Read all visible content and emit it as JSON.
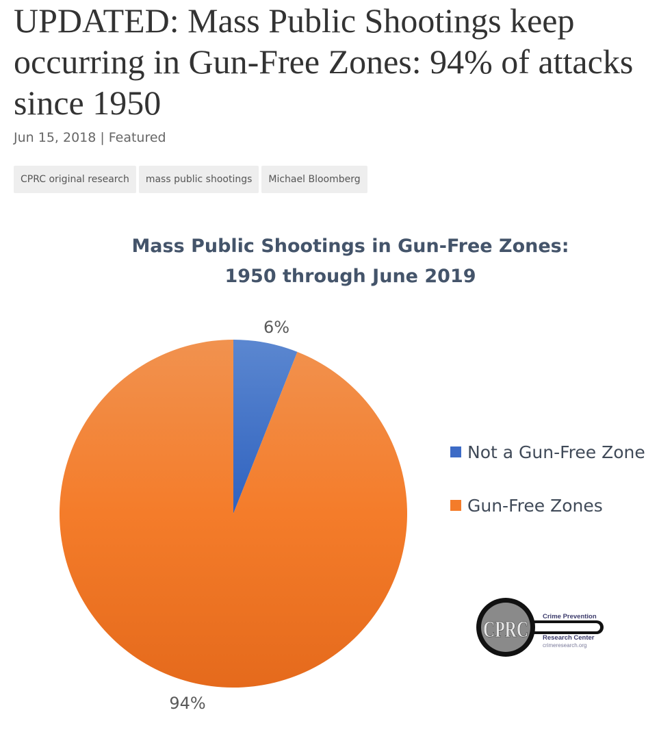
{
  "article": {
    "headline": "UPDATED: Mass Public Shootings keep occurring in Gun-Free Zones: 94% of attacks since 1950",
    "date": "Jun 15, 2018",
    "separator": "|",
    "category": "Featured",
    "tags": [
      "CPRC original research",
      "mass public shootings",
      "Michael Bloomberg"
    ]
  },
  "chart_data": {
    "type": "pie",
    "title_lines": [
      "Mass Public Shootings in Gun-Free Zones:",
      "1950 through June 2019"
    ],
    "series": [
      {
        "name": "Not a Gun-Free Zone",
        "value": 6,
        "label": "6%",
        "color": "#4472c4"
      },
      {
        "name": "Gun-Free Zones",
        "value": 94,
        "label": "94%",
        "color": "#ed7d31"
      }
    ],
    "legend_position": "right"
  },
  "logo": {
    "monogram": "CPRC",
    "name_line1": "Crime Prevention",
    "name_line2": "Research Center",
    "url": "crimeresearch.org",
    "colors": {
      "ring": "#111111",
      "lens": "#8a8a8a",
      "text": "#3b3a6b"
    }
  }
}
